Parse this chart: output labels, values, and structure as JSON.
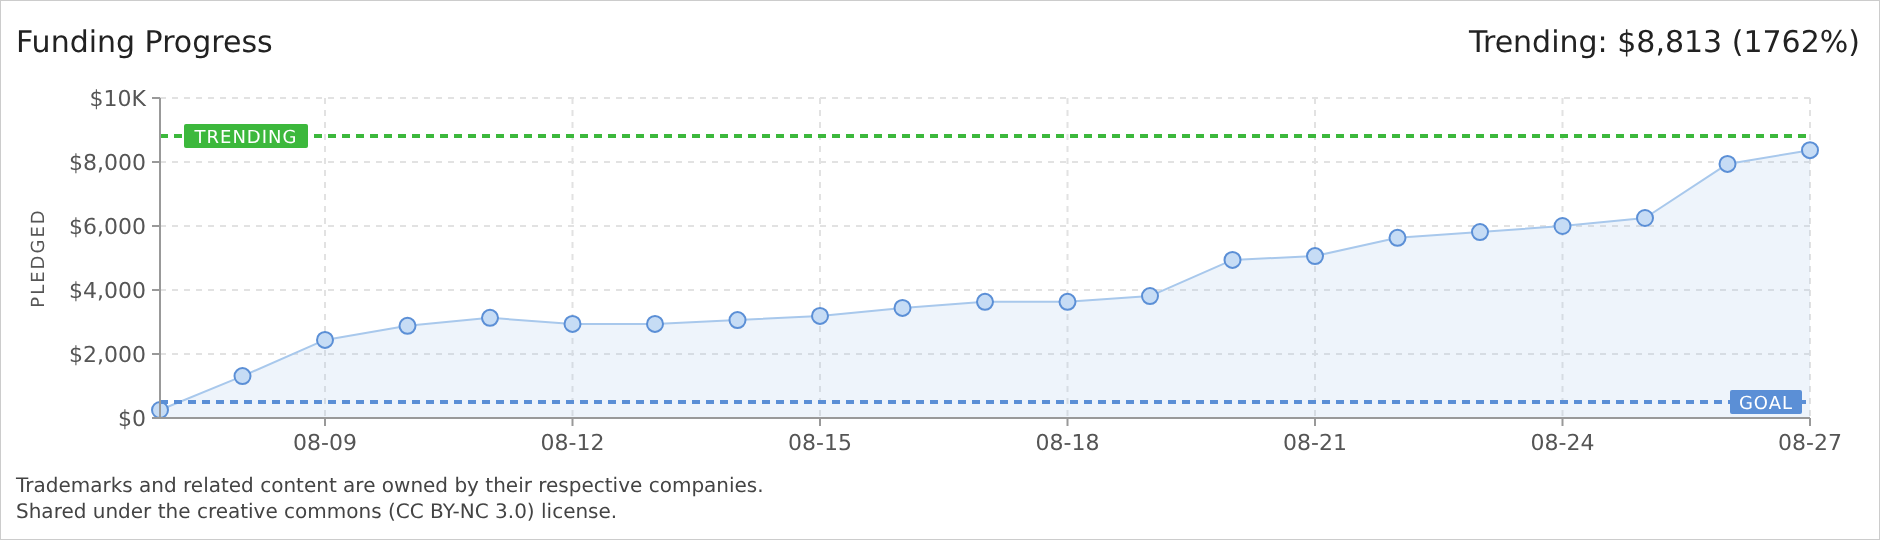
{
  "chart_data": {
    "type": "area",
    "title": "Funding Progress",
    "subtitle": "Trending: $8,813 (1762%)",
    "ylabel": "PLEDGED",
    "x": [
      "--08-07",
      "--08-08",
      "--08-09",
      "--08-10",
      "--08-11",
      "--08-12",
      "--08-13",
      "--08-14",
      "--08-15",
      "--08-16",
      "--08-17",
      "--08-18",
      "--08-19",
      "--08-20",
      "--08-21",
      "--08-22",
      "--08-23",
      "--08-24",
      "--08-25",
      "--08-26",
      "--08-27"
    ],
    "series": [
      {
        "color": "#a8c8ec",
        "values": [
          250,
          1310,
          2440,
          2880,
          3130,
          2940,
          2940,
          3060,
          3190,
          3440,
          3630,
          3630,
          3810,
          4940,
          5060,
          5630,
          5810,
          6000,
          6250,
          7940,
          8370
        ]
      }
    ],
    "xlim": [
      "--08-07",
      "--08-27"
    ],
    "xticks": [
      {
        "value": "--08-09",
        "label": "08-09"
      },
      {
        "value": "--08-12",
        "label": "08-12"
      },
      {
        "value": "--08-15",
        "label": "08-15"
      },
      {
        "value": "--08-18",
        "label": "08-18"
      },
      {
        "value": "--08-21",
        "label": "08-21"
      },
      {
        "value": "--08-24",
        "label": "08-24"
      },
      {
        "value": "--08-27",
        "label": "08-27"
      }
    ],
    "ylim": [
      0,
      10000
    ],
    "yticks": [
      {
        "value": 0,
        "label": "$0"
      },
      {
        "value": 2000,
        "label": "$2,000"
      },
      {
        "value": 4000,
        "label": "$4,000"
      },
      {
        "value": 6000,
        "label": "$6,000"
      },
      {
        "value": 8000,
        "label": "$8,000"
      },
      {
        "value": 10000,
        "label": "$10K"
      }
    ],
    "ref_lines": [
      {
        "axis": "y",
        "value": 8813,
        "label": "TRENDING",
        "color": "#3cb83c",
        "line_style": "dashed"
      },
      {
        "axis": "y",
        "value": 500,
        "label": "GOAL",
        "color": "#5b8fd6",
        "line_style": "dashed"
      }
    ],
    "grid": true,
    "marker": "circle",
    "annotations": [
      "Trademarks and related content are owned by their respective companies.",
      "Shared under the creative commons (CC BY-NC 3.0) license."
    ]
  }
}
